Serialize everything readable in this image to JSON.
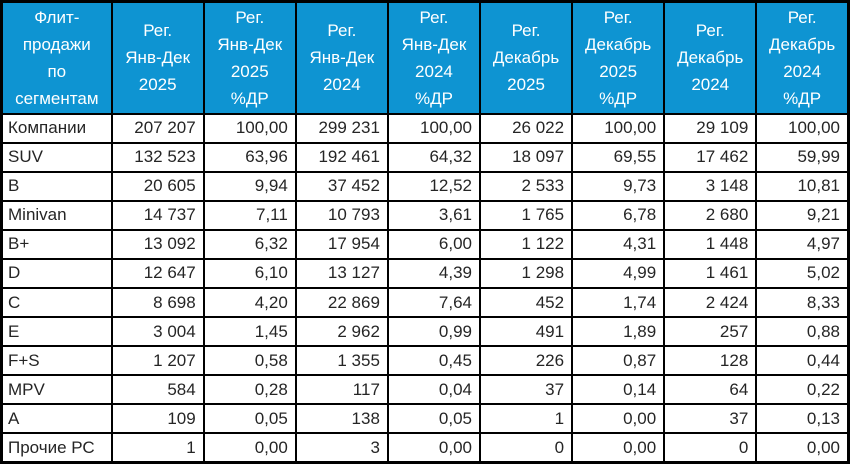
{
  "table": {
    "title": "Флит-продажи по сегментам",
    "accent_color": "#0E94D2",
    "header_text_color": "#FFFFFF",
    "grid_color": "#000000",
    "columns": [
      "Флит-\nпродажи\nпо\nсегментам",
      "Рег.\nЯнв-Дек\n2025",
      "Рег.\nЯнв-Дек\n2025\n%ДР",
      "Рег.\nЯнв-Дек\n2024",
      "Рег.\nЯнв-Дек\n2024\n%ДР",
      "Рег.\nДекабрь\n2025",
      "Рег.\nДекабрь\n2025\n%ДР",
      "Рег.\nДекабрь\n2024",
      "Рег.\nДекабрь\n2024\n%ДР"
    ],
    "rows": [
      {
        "label": "Компании",
        "values": [
          "207 207",
          "100,00",
          "299 231",
          "100,00",
          "26 022",
          "100,00",
          "29 109",
          "100,00"
        ]
      },
      {
        "label": "SUV",
        "values": [
          "132 523",
          "63,96",
          "192 461",
          "64,32",
          "18 097",
          "69,55",
          "17 462",
          "59,99"
        ]
      },
      {
        "label": "B",
        "values": [
          "20 605",
          "9,94",
          "37 452",
          "12,52",
          "2 533",
          "9,73",
          "3 148",
          "10,81"
        ]
      },
      {
        "label": "Minivan",
        "values": [
          "14 737",
          "7,11",
          "10 793",
          "3,61",
          "1 765",
          "6,78",
          "2 680",
          "9,21"
        ]
      },
      {
        "label": "B+",
        "values": [
          "13 092",
          "6,32",
          "17 954",
          "6,00",
          "1 122",
          "4,31",
          "1 448",
          "4,97"
        ]
      },
      {
        "label": "D",
        "values": [
          "12 647",
          "6,10",
          "13 127",
          "4,39",
          "1 298",
          "4,99",
          "1 461",
          "5,02"
        ]
      },
      {
        "label": "C",
        "values": [
          "8 698",
          "4,20",
          "22 869",
          "7,64",
          "452",
          "1,74",
          "2 424",
          "8,33"
        ]
      },
      {
        "label": "E",
        "values": [
          "3 004",
          "1,45",
          "2 962",
          "0,99",
          "491",
          "1,89",
          "257",
          "0,88"
        ]
      },
      {
        "label": "F+S",
        "values": [
          "1 207",
          "0,58",
          "1 355",
          "0,45",
          "226",
          "0,87",
          "128",
          "0,44"
        ]
      },
      {
        "label": "MPV",
        "values": [
          "584",
          "0,28",
          "117",
          "0,04",
          "37",
          "0,14",
          "64",
          "0,22"
        ]
      },
      {
        "label": "A",
        "values": [
          "109",
          "0,05",
          "138",
          "0,05",
          "1",
          "0,00",
          "37",
          "0,13"
        ]
      },
      {
        "label": "Прочие РС",
        "values": [
          "1",
          "0,00",
          "3",
          "0,00",
          "0",
          "0,00",
          "0",
          "0,00"
        ]
      }
    ]
  }
}
